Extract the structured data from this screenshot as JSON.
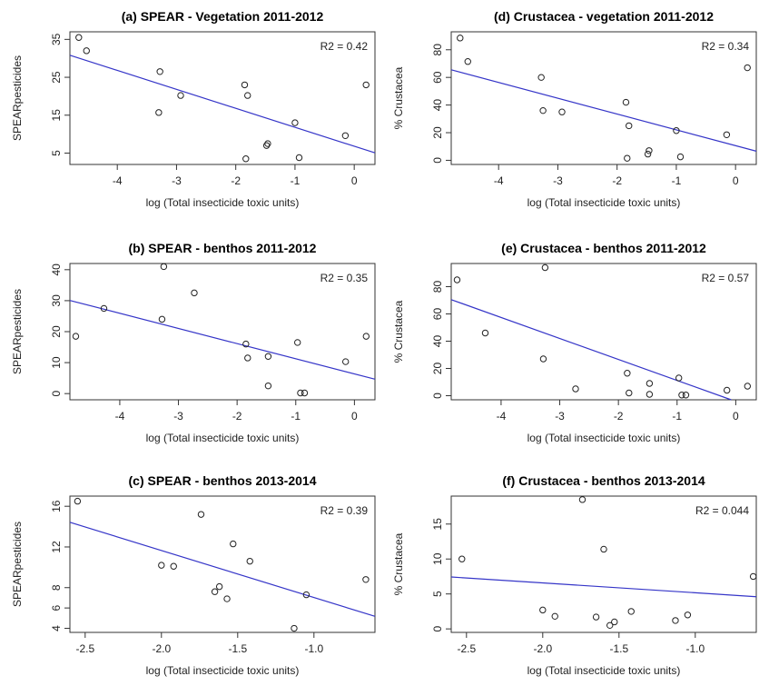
{
  "chart_data": [
    {
      "type": "scatter",
      "title": "(a) SPEAR - Vegetation 2011-2012",
      "xlabel": "log (Total insecticide toxic units)",
      "ylabel": "SPEARpesticides",
      "annotation": "R2 = 0.42",
      "xlim": [
        -4.8,
        0.35
      ],
      "ylim": [
        2,
        37
      ],
      "xticks": [
        -4,
        -3,
        -2,
        -1,
        0
      ],
      "xtick_labels": [
        "-4",
        "-3",
        "-2",
        "-1",
        "0"
      ],
      "yticks": [
        5,
        15,
        25,
        35
      ],
      "ytick_labels": [
        "5",
        "15",
        "25",
        "35"
      ],
      "points": [
        [
          -4.65,
          35.5
        ],
        [
          -4.52,
          32
        ],
        [
          -3.28,
          26.5
        ],
        [
          -3.3,
          15.7
        ],
        [
          -2.93,
          20.2
        ],
        [
          -1.85,
          23
        ],
        [
          -1.8,
          20.2
        ],
        [
          -1.83,
          3.5
        ],
        [
          -1.48,
          7
        ],
        [
          -1.46,
          7.5
        ],
        [
          -1.0,
          13
        ],
        [
          -0.93,
          3.8
        ],
        [
          -0.15,
          9.6
        ],
        [
          0.2,
          23
        ]
      ],
      "fit": {
        "intercept": 6.81,
        "slope": -5.0
      },
      "grid": false
    },
    {
      "type": "scatter",
      "title": "(b) SPEAR - benthos 2011-2012",
      "xlabel": "log (Total insecticide toxic units)",
      "ylabel": "SPEARpesticides",
      "annotation": "R2 = 0.35",
      "xlim": [
        -4.85,
        0.35
      ],
      "ylim": [
        -2,
        42
      ],
      "xticks": [
        -4,
        -3,
        -2,
        -1,
        0
      ],
      "xtick_labels": [
        "-4",
        "-3",
        "-2",
        "-1",
        "0"
      ],
      "yticks": [
        0,
        10,
        20,
        30,
        40
      ],
      "ytick_labels": [
        "0",
        "10",
        "20",
        "30",
        "40"
      ],
      "points": [
        [
          -4.75,
          18.5
        ],
        [
          -4.27,
          27.5
        ],
        [
          -3.28,
          24
        ],
        [
          -3.25,
          41
        ],
        [
          -2.73,
          32.5
        ],
        [
          -1.85,
          16
        ],
        [
          -1.82,
          11.5
        ],
        [
          -1.47,
          12
        ],
        [
          -1.47,
          2.5
        ],
        [
          -0.97,
          16.5
        ],
        [
          -0.92,
          0.2
        ],
        [
          -0.85,
          0.2
        ],
        [
          -0.15,
          10.3
        ],
        [
          0.2,
          18.5
        ]
      ],
      "fit": {
        "intercept": 6.36,
        "slope": -4.89
      },
      "grid": false
    },
    {
      "type": "scatter",
      "title": "(c) SPEAR - benthos 2013-2014",
      "xlabel": "log (Total insecticide toxic units)",
      "ylabel": "SPEARpesticides",
      "annotation": "R2 = 0.39",
      "xlim": [
        -2.6,
        -0.6
      ],
      "ylim": [
        3.6,
        17
      ],
      "xticks": [
        -2.5,
        -2.0,
        -1.5,
        -1.0
      ],
      "xtick_labels": [
        "-2.5",
        "-2.0",
        "-1.5",
        "-1.0"
      ],
      "yticks": [
        4,
        6,
        8,
        12,
        16
      ],
      "ytick_labels": [
        "4",
        "6",
        "8",
        "12",
        "16"
      ],
      "points": [
        [
          -2.55,
          16.5
        ],
        [
          -2.0,
          10.2
        ],
        [
          -1.92,
          10.1
        ],
        [
          -1.74,
          15.2
        ],
        [
          -1.65,
          7.6
        ],
        [
          -1.62,
          8.1
        ],
        [
          -1.57,
          6.9
        ],
        [
          -1.53,
          12.3
        ],
        [
          -1.42,
          10.6
        ],
        [
          -1.13,
          4.0
        ],
        [
          -1.05,
          7.3
        ],
        [
          -0.66,
          8.8
        ]
      ],
      "fit": {
        "intercept": 2.41,
        "slope": -4.62
      },
      "grid": false
    },
    {
      "type": "scatter",
      "title": "(d) Crustacea - vegetation 2011-2012",
      "xlabel": "log (Total insecticide toxic units)",
      "ylabel": "% Crustacea",
      "annotation": "R2 = 0.34",
      "xlim": [
        -4.8,
        0.35
      ],
      "ylim": [
        -3,
        93
      ],
      "xticks": [
        -4,
        -3,
        -2,
        -1,
        0
      ],
      "xtick_labels": [
        "-4",
        "-3",
        "-2",
        "-1",
        "0"
      ],
      "yticks": [
        0,
        20,
        40,
        60,
        80
      ],
      "ytick_labels": [
        "0",
        "20",
        "40",
        "60",
        "80"
      ],
      "points": [
        [
          -4.65,
          88.5
        ],
        [
          -4.52,
          71.5
        ],
        [
          -3.28,
          60
        ],
        [
          -3.25,
          36
        ],
        [
          -2.93,
          35
        ],
        [
          -1.85,
          42
        ],
        [
          -1.8,
          25
        ],
        [
          -1.83,
          1.5
        ],
        [
          -1.48,
          4.5
        ],
        [
          -1.46,
          7
        ],
        [
          -1.0,
          21.5
        ],
        [
          -0.93,
          2.5
        ],
        [
          -0.15,
          18.5
        ],
        [
          0.2,
          67
        ]
      ],
      "fit": {
        "intercept": 10.62,
        "slope": -11.44
      },
      "grid": false
    },
    {
      "type": "scatter",
      "title": "(e) Crustacea - benthos 2011-2012",
      "xlabel": "log (Total insecticide toxic units)",
      "ylabel": "% Crustacea",
      "annotation": "R2 = 0.57",
      "xlim": [
        -4.85,
        0.35
      ],
      "ylim": [
        -3,
        97
      ],
      "xticks": [
        -4,
        -3,
        -2,
        -1,
        0
      ],
      "xtick_labels": [
        "-4",
        "-3",
        "-2",
        "-1",
        "0"
      ],
      "yticks": [
        0,
        20,
        40,
        60,
        80
      ],
      "ytick_labels": [
        "0",
        "20",
        "40",
        "60",
        "80"
      ],
      "points": [
        [
          -4.75,
          85
        ],
        [
          -4.27,
          46
        ],
        [
          -3.28,
          27
        ],
        [
          -3.25,
          94
        ],
        [
          -2.73,
          5
        ],
        [
          -1.85,
          16.5
        ],
        [
          -1.82,
          2
        ],
        [
          -1.47,
          9
        ],
        [
          -1.47,
          1
        ],
        [
          -0.97,
          13
        ],
        [
          -0.92,
          0.5
        ],
        [
          -0.85,
          0.5
        ],
        [
          -0.15,
          4
        ],
        [
          0.2,
          7
        ]
      ],
      "fit": {
        "intercept": -4.2,
        "slope": -15.4
      },
      "grid": false
    },
    {
      "type": "scatter",
      "title": "(f) Crustacea - benthos 2013-2014",
      "xlabel": "log (Total insecticide toxic units)",
      "ylabel": "% Crustacea",
      "annotation": "R2 = 0.044",
      "xlim": [
        -2.6,
        -0.6
      ],
      "ylim": [
        -0.5,
        19
      ],
      "xticks": [
        -2.5,
        -2.0,
        -1.5,
        -1.0
      ],
      "xtick_labels": [
        "-2.5",
        "-2.0",
        "-1.5",
        "-1.0"
      ],
      "yticks": [
        0,
        5,
        10,
        15
      ],
      "ytick_labels": [
        "0",
        "5",
        "10",
        "15"
      ],
      "points": [
        [
          -2.53,
          10
        ],
        [
          -2.0,
          2.7
        ],
        [
          -1.92,
          1.8
        ],
        [
          -1.74,
          18.5
        ],
        [
          -1.65,
          1.7
        ],
        [
          -1.6,
          11.4
        ],
        [
          -1.56,
          0.5
        ],
        [
          -1.53,
          1
        ],
        [
          -1.42,
          2.5
        ],
        [
          -1.13,
          1.2
        ],
        [
          -1.05,
          2
        ],
        [
          -0.62,
          7.5
        ]
      ],
      "fit": {
        "intercept": 3.76,
        "slope": -1.41
      },
      "grid": false
    }
  ],
  "colors": {
    "fit_line": "#3535c8",
    "points": "#222222",
    "axes": "#333333"
  }
}
